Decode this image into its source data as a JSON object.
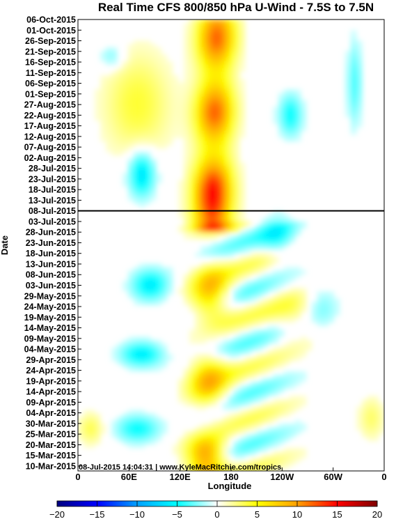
{
  "chart_data": {
    "type": "heatmap",
    "title": "Real Time CFS 800/850 hPa U-Wind - 7.5S to 7.5N",
    "xlabel": "Longitude",
    "ylabel": "Date",
    "x_ticks": [
      "0",
      "60E",
      "120E",
      "180",
      "120W",
      "60W",
      "0"
    ],
    "x_tick_values": [
      0,
      60,
      120,
      180,
      240,
      300,
      360
    ],
    "xlim": [
      0,
      360
    ],
    "y_ticks": [
      "06-Oct-2015",
      "01-Oct-2015",
      "26-Sep-2015",
      "21-Sep-2015",
      "16-Sep-2015",
      "11-Sep-2015",
      "06-Sep-2015",
      "01-Sep-2015",
      "27-Aug-2015",
      "22-Aug-2015",
      "17-Aug-2015",
      "12-Aug-2015",
      "07-Aug-2015",
      "02-Aug-2015",
      "28-Jul-2015",
      "23-Jul-2015",
      "18-Jul-2015",
      "13-Jul-2015",
      "08-Jul-2015",
      "03-Jul-2015",
      "28-Jun-2015",
      "23-Jun-2015",
      "18-Jun-2015",
      "13-Jun-2015",
      "08-Jun-2015",
      "03-Jun-2015",
      "29-May-2015",
      "24-May-2015",
      "19-May-2015",
      "14-May-2015",
      "09-May-2015",
      "04-May-2015",
      "29-Apr-2015",
      "24-Apr-2015",
      "19-Apr-2015",
      "14-Apr-2015",
      "09-Apr-2015",
      "04-Apr-2015",
      "30-Mar-2015",
      "25-Mar-2015",
      "20-Mar-2015",
      "15-Mar-2015",
      "10-Mar-2015"
    ],
    "reference_line": "08-Jul-2015",
    "colorbar": {
      "ticks": [
        -20,
        -15,
        -10,
        -5,
        0,
        5,
        10,
        15,
        20
      ],
      "range": [
        -20,
        20
      ],
      "colors": [
        "#00007f",
        "#0000ff",
        "#00a0ff",
        "#00ffff",
        "#ffffff",
        "#ffff00",
        "#ffa000",
        "#ff0000",
        "#7f0000"
      ]
    },
    "grid": false
  },
  "annotation": "08-Jul-2015 14:04:31 | www.KyleMacRitchie.com/tropics"
}
